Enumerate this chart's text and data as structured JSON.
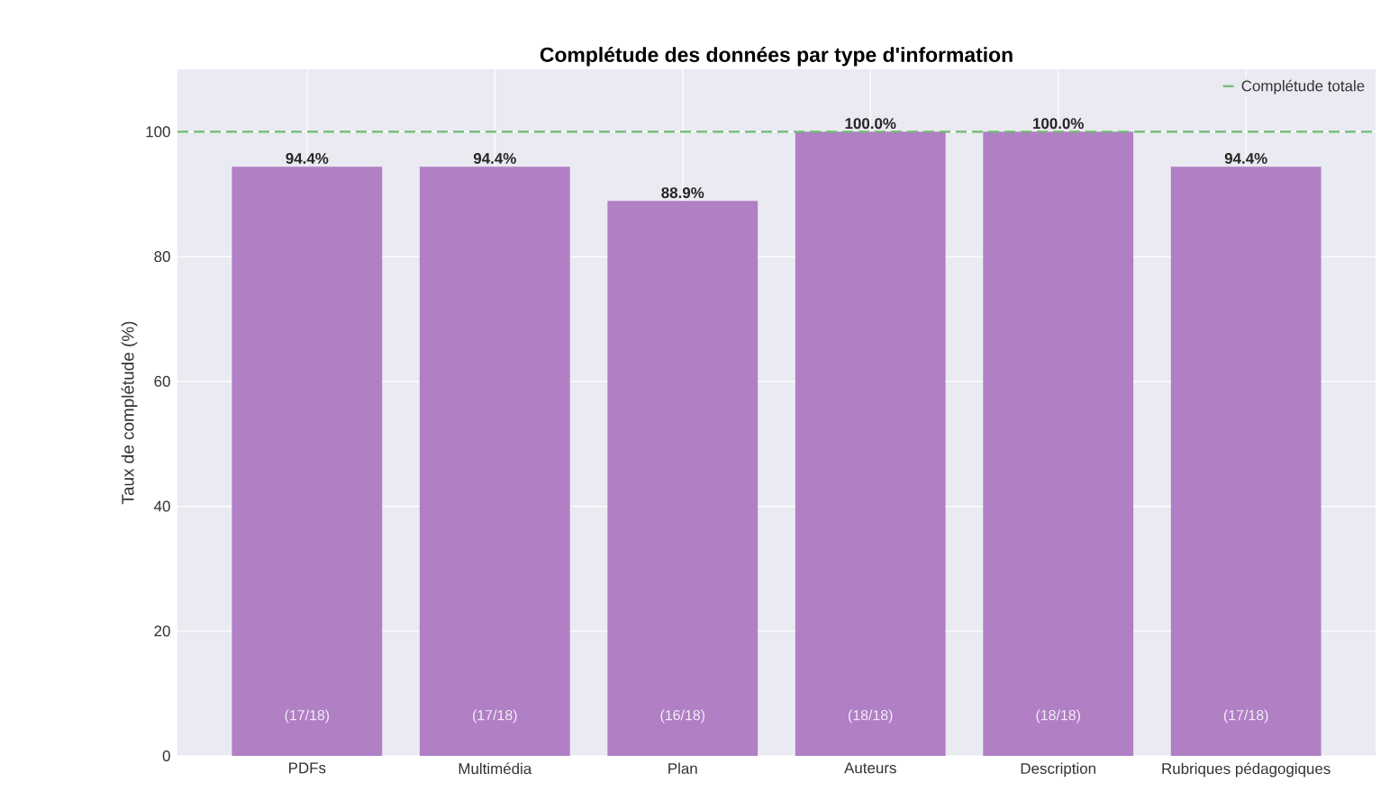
{
  "chart_data": {
    "type": "bar",
    "title": "Complétude des données par type d'information",
    "ylabel": "Taux de complétude (%)",
    "categories": [
      "PDFs",
      "Multimédia",
      "Plan",
      "Auteurs",
      "Description",
      "Rubriques pédagogiques"
    ],
    "values": [
      94.4,
      94.4,
      88.9,
      100.0,
      100.0,
      94.4
    ],
    "value_labels": [
      "94.4%",
      "94.4%",
      "88.9%",
      "100.0%",
      "100.0%",
      "94.4%"
    ],
    "color": "#b07fc4",
    "ylim": [
      0,
      110
    ],
    "yticks": [
      0,
      20,
      40,
      60,
      80,
      100
    ],
    "grid": true,
    "legend": "top right",
    "ref_lines": [
      {
        "axis": "y",
        "value": 100,
        "label": "Complétude totale",
        "color": "#6fbb6f",
        "line_style": "dashed"
      }
    ],
    "annotations": [
      "(17/18)",
      "(17/18)",
      "(16/18)",
      "(18/18)",
      "(18/18)",
      "(17/18)"
    ]
  }
}
